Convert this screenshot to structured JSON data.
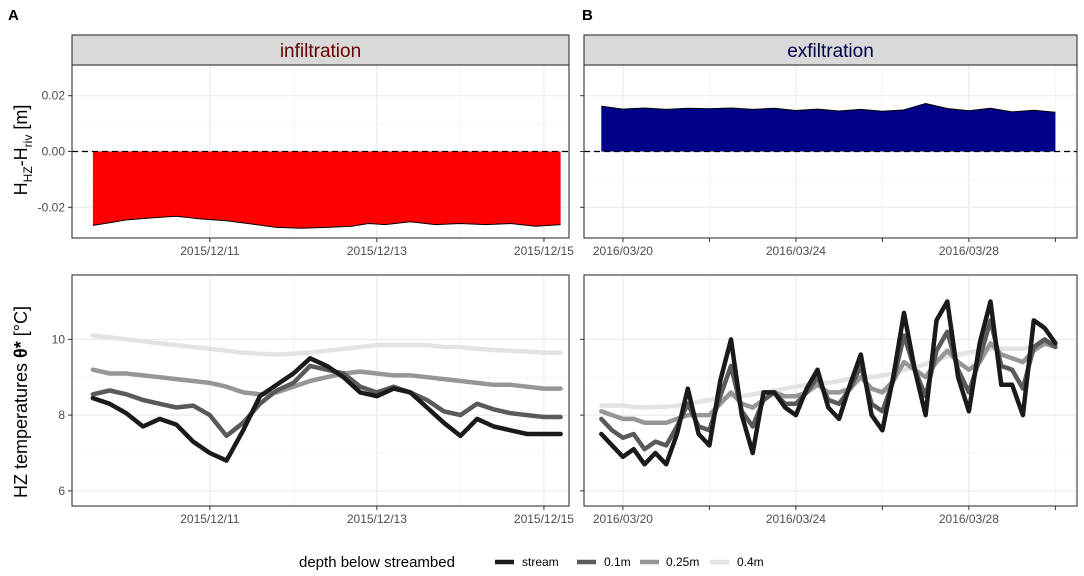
{
  "panel_letters": [
    "A",
    "B"
  ],
  "y_titles": {
    "top": {
      "main": "H",
      "sub1": "HZ",
      "mid": "-H",
      "sub2": "riv",
      "unit": " [m]"
    },
    "bottom": {
      "main": "HZ temperatures ",
      "theta": "θ*",
      "unit": " [°C]"
    }
  },
  "legend": {
    "title": "depth below streambed",
    "items": [
      {
        "label": "stream",
        "color": "#1a1a1a"
      },
      {
        "label": "0.1m",
        "color": "#5a5a5a"
      },
      {
        "label": "0.25m",
        "color": "#969696"
      },
      {
        "label": "0.4m",
        "color": "#e3e3e3"
      }
    ]
  },
  "chart_data": [
    {
      "type": "area",
      "panel": "A-top",
      "facet": "infiltration",
      "facet_color": "#6b0000",
      "fill": "#ff0000",
      "ylim": [
        -0.031,
        0.031
      ],
      "yticks": [
        -0.02,
        0.0,
        0.02
      ],
      "ytick_labels": [
        "-0.02",
        "0.00",
        "0.02"
      ],
      "xlim": [
        9.35,
        15.3
      ],
      "xticks": [
        11,
        13,
        15
      ],
      "xtick_labels": [
        "2015/12/11",
        "2015/12/13",
        "2015/12/15"
      ],
      "x": [
        9.6,
        9.8,
        10.0,
        10.3,
        10.6,
        10.9,
        11.2,
        11.5,
        11.8,
        12.1,
        12.4,
        12.7,
        12.9,
        13.1,
        13.4,
        13.7,
        14.0,
        14.3,
        14.6,
        14.9,
        15.2
      ],
      "values": [
        -0.0265,
        -0.0255,
        -0.0245,
        -0.0238,
        -0.0232,
        -0.0242,
        -0.0248,
        -0.026,
        -0.0272,
        -0.0275,
        -0.0272,
        -0.0268,
        -0.0258,
        -0.0262,
        -0.0252,
        -0.0262,
        -0.0258,
        -0.0262,
        -0.0258,
        -0.0268,
        -0.0262
      ]
    },
    {
      "type": "area",
      "panel": "B-top",
      "facet": "exfiltration",
      "facet_color": "#00004d",
      "fill": "#00008b",
      "ylim": [
        -0.031,
        0.031
      ],
      "yticks": [
        -0.02,
        0.0,
        0.02
      ],
      "ytick_labels": [
        "-0.02",
        "0.00",
        "0.02"
      ],
      "xlim": [
        19.1,
        30.5
      ],
      "xticks": [
        20,
        24,
        28
      ],
      "minor_xticks": [
        22,
        26,
        30
      ],
      "xtick_labels": [
        "2016/03/20",
        "2016/03/24",
        "2016/03/28"
      ],
      "x": [
        19.5,
        20.0,
        20.5,
        21.0,
        21.5,
        22.0,
        22.5,
        23.0,
        23.5,
        24.0,
        24.5,
        25.0,
        25.5,
        26.0,
        26.5,
        27.0,
        27.5,
        28.0,
        28.5,
        29.0,
        29.5,
        30.0
      ],
      "values": [
        0.0162,
        0.0152,
        0.0156,
        0.0151,
        0.0155,
        0.0153,
        0.0156,
        0.0151,
        0.0155,
        0.0147,
        0.0152,
        0.0145,
        0.0151,
        0.0144,
        0.0149,
        0.0172,
        0.0154,
        0.0146,
        0.0155,
        0.0142,
        0.0148,
        0.0141
      ]
    },
    {
      "type": "line",
      "panel": "A-bottom",
      "ylim": [
        5.6,
        11.7
      ],
      "yticks": [
        6,
        8,
        10
      ],
      "ytick_labels": [
        "6",
        "8",
        "10"
      ],
      "xlim": [
        9.35,
        15.3
      ],
      "xticks": [
        11,
        13,
        15
      ],
      "xtick_labels": [
        "2015/12/11",
        "2015/12/13",
        "2015/12/15"
      ],
      "x": [
        9.6,
        9.8,
        10.0,
        10.2,
        10.4,
        10.6,
        10.8,
        11.0,
        11.2,
        11.4,
        11.6,
        11.8,
        12.0,
        12.2,
        12.4,
        12.6,
        12.8,
        13.0,
        13.2,
        13.4,
        13.6,
        13.8,
        14.0,
        14.2,
        14.4,
        14.6,
        14.8,
        15.0,
        15.2
      ],
      "series": [
        {
          "name": "stream",
          "values": [
            8.45,
            8.3,
            8.05,
            7.7,
            7.9,
            7.75,
            7.3,
            7.0,
            6.8,
            7.6,
            8.5,
            8.8,
            9.1,
            9.5,
            9.3,
            9.0,
            8.6,
            8.5,
            8.7,
            8.6,
            8.2,
            7.8,
            7.45,
            7.9,
            7.7,
            7.6,
            7.5,
            7.5,
            7.5
          ]
        },
        {
          "name": "0.1m",
          "values": [
            8.55,
            8.65,
            8.55,
            8.4,
            8.3,
            8.2,
            8.25,
            8.0,
            7.45,
            7.8,
            8.3,
            8.65,
            8.85,
            9.3,
            9.2,
            9.1,
            8.75,
            8.6,
            8.75,
            8.6,
            8.4,
            8.1,
            8.0,
            8.3,
            8.15,
            8.05,
            8.0,
            7.95,
            7.95
          ]
        },
        {
          "name": "0.25m",
          "values": [
            9.2,
            9.1,
            9.1,
            9.05,
            9.0,
            8.95,
            8.9,
            8.85,
            8.75,
            8.6,
            8.55,
            8.6,
            8.75,
            8.9,
            9.0,
            9.1,
            9.15,
            9.1,
            9.05,
            9.05,
            9.0,
            8.95,
            8.9,
            8.85,
            8.8,
            8.8,
            8.75,
            8.7,
            8.7
          ]
        },
        {
          "name": "0.4m",
          "values": [
            10.1,
            10.05,
            10.0,
            9.95,
            9.9,
            9.85,
            9.8,
            9.75,
            9.7,
            9.65,
            9.62,
            9.6,
            9.62,
            9.65,
            9.7,
            9.75,
            9.8,
            9.85,
            9.85,
            9.85,
            9.85,
            9.8,
            9.8,
            9.75,
            9.72,
            9.7,
            9.68,
            9.65,
            9.65
          ]
        }
      ]
    },
    {
      "type": "line",
      "panel": "B-bottom",
      "ylim": [
        5.6,
        11.7
      ],
      "yticks": [
        6,
        8,
        10
      ],
      "ytick_labels": [
        "6",
        "8",
        "10"
      ],
      "xlim": [
        19.1,
        30.5
      ],
      "xticks": [
        20,
        24,
        28
      ],
      "minor_xticks": [
        22,
        26,
        30
      ],
      "xtick_labels": [
        "2016/03/20",
        "2016/03/24",
        "2016/03/28"
      ],
      "x": [
        19.5,
        19.75,
        20.0,
        20.25,
        20.5,
        20.75,
        21.0,
        21.25,
        21.5,
        21.75,
        22.0,
        22.25,
        22.5,
        22.75,
        23.0,
        23.25,
        23.5,
        23.75,
        24.0,
        24.25,
        24.5,
        24.75,
        25.0,
        25.25,
        25.5,
        25.75,
        26.0,
        26.25,
        26.5,
        26.75,
        27.0,
        27.25,
        27.5,
        27.75,
        28.0,
        28.25,
        28.5,
        28.75,
        29.0,
        29.25,
        29.5,
        29.75,
        30.0
      ],
      "series": [
        {
          "name": "stream",
          "values": [
            7.5,
            7.2,
            6.9,
            7.1,
            6.7,
            7.0,
            6.7,
            7.5,
            8.7,
            7.5,
            7.2,
            8.9,
            10.0,
            8.0,
            7.0,
            8.6,
            8.6,
            8.2,
            8.0,
            8.7,
            9.2,
            8.2,
            7.9,
            8.8,
            9.6,
            8.0,
            7.6,
            9.0,
            10.7,
            9.2,
            8.0,
            10.5,
            11.0,
            9.0,
            8.1,
            9.9,
            11.0,
            8.8,
            8.8,
            8.0,
            10.5,
            10.3,
            9.9
          ]
        },
        {
          "name": "0.1m",
          "values": [
            7.9,
            7.6,
            7.4,
            7.5,
            7.1,
            7.3,
            7.2,
            7.7,
            8.3,
            7.7,
            7.6,
            8.5,
            9.3,
            8.1,
            7.7,
            8.4,
            8.6,
            8.3,
            8.3,
            8.6,
            9.0,
            8.4,
            8.3,
            8.7,
            9.3,
            8.3,
            8.1,
            8.9,
            10.1,
            9.2,
            8.5,
            9.7,
            10.2,
            9.2,
            8.6,
            9.5,
            10.5,
            9.3,
            9.2,
            8.7,
            9.8,
            10.0,
            9.8
          ]
        },
        {
          "name": "0.25m",
          "values": [
            8.1,
            8.0,
            7.9,
            7.9,
            7.8,
            7.8,
            7.8,
            7.9,
            8.0,
            8.0,
            8.0,
            8.3,
            8.6,
            8.3,
            8.2,
            8.4,
            8.6,
            8.5,
            8.5,
            8.6,
            8.8,
            8.6,
            8.6,
            8.7,
            9.0,
            8.7,
            8.6,
            8.9,
            9.4,
            9.2,
            9.0,
            9.4,
            9.7,
            9.4,
            9.2,
            9.4,
            9.9,
            9.6,
            9.5,
            9.4,
            9.7,
            9.9,
            9.8
          ]
        },
        {
          "name": "0.4m",
          "values": [
            8.25,
            8.25,
            8.25,
            8.22,
            8.2,
            8.22,
            8.22,
            8.25,
            8.3,
            8.35,
            8.4,
            8.45,
            8.5,
            8.5,
            8.55,
            8.6,
            8.65,
            8.7,
            8.75,
            8.8,
            8.85,
            8.85,
            8.9,
            8.95,
            9.0,
            9.0,
            9.05,
            9.1,
            9.2,
            9.25,
            9.35,
            9.45,
            9.55,
            9.6,
            9.65,
            9.7,
            9.75,
            9.75,
            9.75,
            9.75,
            9.8,
            9.85,
            9.85
          ]
        }
      ]
    }
  ]
}
